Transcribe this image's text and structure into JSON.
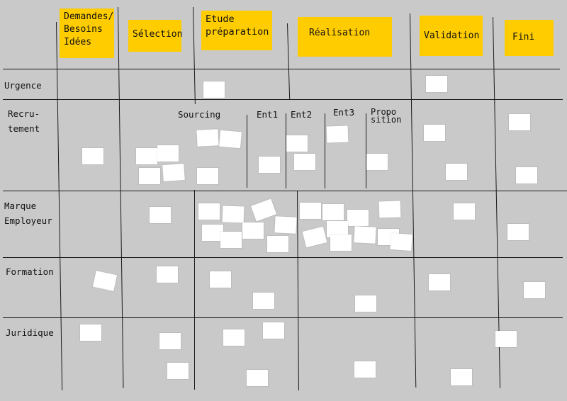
{
  "columns": [
    {
      "id": "demandes",
      "label": "Demandes/\nBesoins\nIdées"
    },
    {
      "id": "selection",
      "label": "Sélection"
    },
    {
      "id": "etude",
      "label": "Etude\npréparation"
    },
    {
      "id": "realisation",
      "label": "Réalisation"
    },
    {
      "id": "validation",
      "label": "Validation"
    },
    {
      "id": "fini",
      "label": "Fini"
    }
  ],
  "rows": [
    {
      "id": "urgence",
      "label": "Urgence"
    },
    {
      "id": "recrutement",
      "label": "Recru-\ntement"
    },
    {
      "id": "marque",
      "label": "Marque\nEmployeur"
    },
    {
      "id": "formation",
      "label": "Formation"
    },
    {
      "id": "juridique",
      "label": "Juridique"
    }
  ],
  "sub_columns": [
    "Sourcing",
    "Ent1",
    "Ent2",
    "Ent3",
    "Propo\nsition"
  ],
  "colors": {
    "background": "#c9c9c9",
    "header_note": "#ffcc00",
    "sticky_note": "#ffffff",
    "grid_line": "#1a1a1a"
  }
}
